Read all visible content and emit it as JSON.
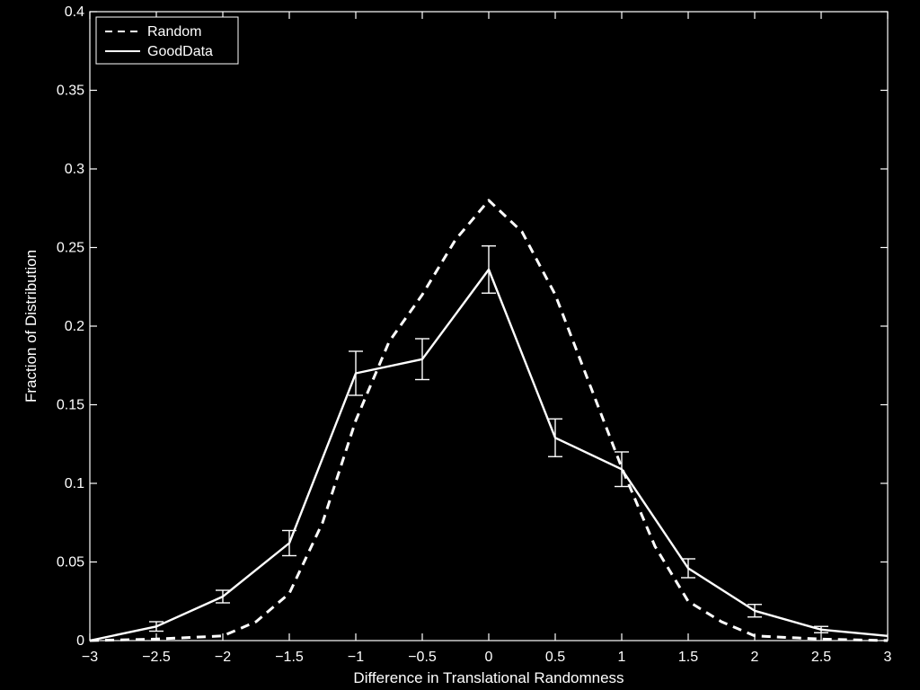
{
  "chart_data": {
    "type": "line",
    "xlabel": "Difference in Translational Randomness",
    "ylabel": "Fraction of Distribution",
    "xlim": [
      -3,
      3
    ],
    "ylim": [
      0,
      0.4
    ],
    "x_ticks": [
      -3,
      -2.5,
      -2,
      -1.5,
      -1,
      -0.5,
      0,
      0.5,
      1,
      1.5,
      2,
      2.5,
      3
    ],
    "x_tick_labels": [
      "−3",
      "−2.5",
      "−2",
      "−1.5",
      "−1",
      "−0.5",
      "0",
      "0.5",
      "1",
      "1.5",
      "2",
      "2.5",
      "3"
    ],
    "y_ticks": [
      0,
      0.05,
      0.1,
      0.15,
      0.2,
      0.25,
      0.3,
      0.35,
      0.4
    ],
    "y_tick_labels": [
      "0",
      "0.05",
      "0.1",
      "0.15",
      "0.2",
      "0.25",
      "0.3",
      "0.35",
      "0.4"
    ],
    "grid": false,
    "legend_position": "top-left",
    "series": [
      {
        "name": "Random",
        "style": "dashed",
        "color": "#ffffff",
        "x": [
          -3,
          -2.5,
          -2,
          -1.75,
          -1.5,
          -1.25,
          -1,
          -0.75,
          -0.5,
          -0.25,
          0,
          0.25,
          0.5,
          0.75,
          1,
          1.25,
          1.5,
          1.75,
          2,
          2.5,
          3
        ],
        "y": [
          0.0,
          0.001,
          0.003,
          0.012,
          0.03,
          0.075,
          0.14,
          0.19,
          0.22,
          0.255,
          0.28,
          0.26,
          0.22,
          0.165,
          0.11,
          0.06,
          0.025,
          0.012,
          0.003,
          0.001,
          0.0
        ]
      },
      {
        "name": "GoodData",
        "style": "solid",
        "color": "#ffffff",
        "x": [
          -3,
          -2.5,
          -2,
          -1.5,
          -1,
          -0.5,
          0,
          0.5,
          1,
          1.5,
          2,
          2.5,
          3
        ],
        "y": [
          0.0,
          0.009,
          0.028,
          0.062,
          0.17,
          0.179,
          0.236,
          0.129,
          0.109,
          0.046,
          0.019,
          0.007,
          0.003
        ],
        "error": [
          0.0,
          0.003,
          0.004,
          0.008,
          0.014,
          0.013,
          0.015,
          0.012,
          0.011,
          0.006,
          0.004,
          0.002,
          0.0
        ]
      }
    ]
  }
}
